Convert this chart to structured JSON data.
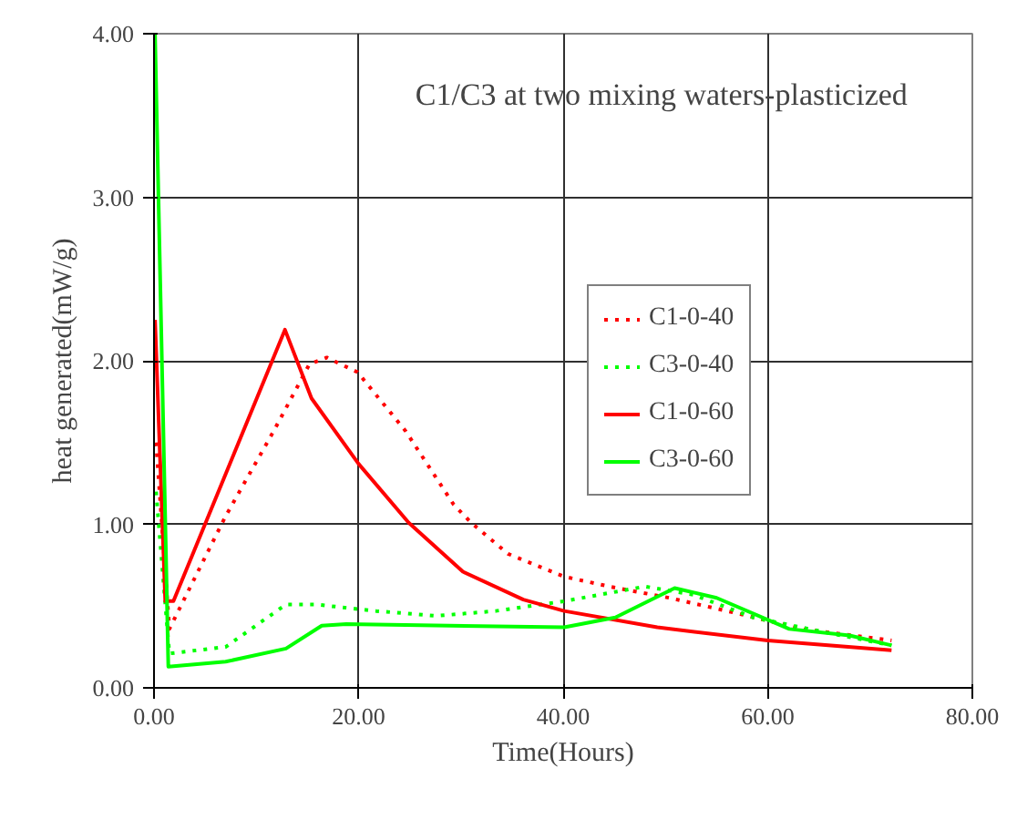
{
  "chart_data": {
    "type": "line",
    "title": "C1/C3 at two mixing waters-plasticized",
    "xlabel": "Time(Hours)",
    "ylabel": "heat generated(mW/g)",
    "xlim": [
      0,
      80
    ],
    "ylim": [
      0,
      4
    ],
    "xticks": [
      {
        "value": 0,
        "label": "0.00"
      },
      {
        "value": 20,
        "label": "20.00"
      },
      {
        "value": 40,
        "label": "40.00"
      },
      {
        "value": 60,
        "label": "60.00"
      },
      {
        "value": 80,
        "label": "80.00"
      }
    ],
    "yticks": [
      {
        "value": 0,
        "label": "0.00"
      },
      {
        "value": 1,
        "label": "1.00"
      },
      {
        "value": 2,
        "label": "2.00"
      },
      {
        "value": 3,
        "label": "3.00"
      },
      {
        "value": 4,
        "label": "4.00"
      }
    ],
    "grid": true,
    "legend": "center",
    "marker": "none",
    "series": [
      {
        "name": "C1-0-40",
        "color": "#ff0000",
        "line_style": "dotted",
        "x": [
          0.2,
          1.5,
          7.0,
          11.7,
          15.2,
          16.9,
          19.9,
          24.6,
          29.3,
          31.0,
          34.6,
          40.1,
          44.5,
          50.4,
          57.4,
          63.3,
          72.1
        ],
        "values": [
          1.5,
          0.36,
          1.05,
          1.57,
          1.98,
          2.02,
          1.93,
          1.57,
          1.12,
          1.01,
          0.82,
          0.68,
          0.62,
          0.55,
          0.45,
          0.36,
          0.29
        ]
      },
      {
        "name": "C3-0-40",
        "color": "#00ff00",
        "line_style": "dotted",
        "x": [
          0.2,
          1.5,
          7.0,
          12.9,
          15.8,
          21.7,
          27.6,
          33.4,
          40.1,
          48.0,
          52.7,
          58.6,
          65.6,
          72.1
        ],
        "values": [
          1.2,
          0.21,
          0.25,
          0.51,
          0.51,
          0.47,
          0.44,
          0.47,
          0.53,
          0.62,
          0.57,
          0.43,
          0.34,
          0.26
        ]
      },
      {
        "name": "C1-0-60",
        "color": "#ff0000",
        "line_style": "solid",
        "x": [
          0.1,
          1.1,
          1.9,
          12.8,
          15.4,
          20.0,
          24.9,
          30.2,
          36.1,
          40.1,
          49.2,
          60.0,
          72.1
        ],
        "values": [
          2.25,
          0.53,
          0.53,
          2.19,
          1.77,
          1.37,
          1.01,
          0.71,
          0.54,
          0.47,
          0.37,
          0.29,
          0.23
        ]
      },
      {
        "name": "C3-0-60",
        "color": "#00ff00",
        "line_style": "solid",
        "x": [
          0.1,
          1.4,
          7.0,
          12.9,
          16.4,
          18.8,
          40.1,
          45.1,
          50.9,
          55.0,
          62.1,
          68.0,
          72.1
        ],
        "values": [
          4.0,
          0.13,
          0.16,
          0.24,
          0.38,
          0.39,
          0.37,
          0.43,
          0.61,
          0.55,
          0.36,
          0.32,
          0.26
        ]
      }
    ]
  }
}
